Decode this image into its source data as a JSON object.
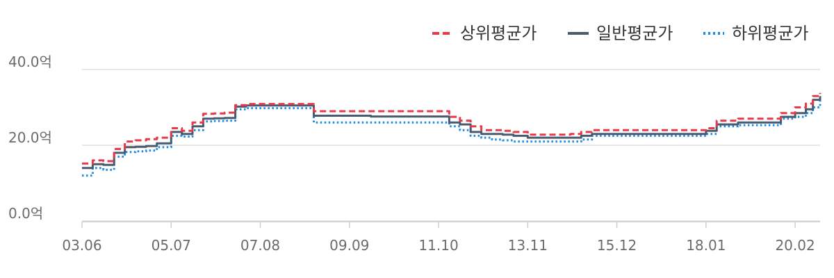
{
  "chart_data": {
    "type": "line",
    "grid": true,
    "legend_position": "top-right",
    "x_ticks": [
      "03.06",
      "05.07",
      "07.08",
      "09.09",
      "11.10",
      "13.11",
      "15.12",
      "18.01",
      "20.02"
    ],
    "x_range": [
      "2003-06",
      "2020-09"
    ],
    "y_ticks": [
      "0.0억",
      "20.0억",
      "40.0억"
    ],
    "ylim": [
      0,
      40
    ],
    "x": [
      "2003-06",
      "2003-09",
      "2003-12",
      "2004-03",
      "2004-06",
      "2004-09",
      "2004-12",
      "2005-03",
      "2005-07",
      "2005-10",
      "2006-01",
      "2006-04",
      "2006-07",
      "2006-10",
      "2007-01",
      "2007-04",
      "2007-08",
      "2007-11",
      "2008-02",
      "2008-05",
      "2008-08",
      "2008-11",
      "2009-02",
      "2009-05",
      "2009-09",
      "2009-12",
      "2010-03",
      "2010-06",
      "2010-09",
      "2010-12",
      "2011-03",
      "2011-06",
      "2011-10",
      "2012-01",
      "2012-04",
      "2012-07",
      "2012-10",
      "2013-01",
      "2013-04",
      "2013-07",
      "2013-11",
      "2014-02",
      "2014-05",
      "2014-08",
      "2014-11",
      "2015-02",
      "2015-05",
      "2015-08",
      "2015-12",
      "2016-03",
      "2016-06",
      "2016-09",
      "2016-12",
      "2017-03",
      "2017-06",
      "2017-09",
      "2018-01",
      "2018-04",
      "2018-07",
      "2018-10",
      "2019-01",
      "2019-04",
      "2019-07",
      "2019-10",
      "2020-02",
      "2020-05",
      "2020-07",
      "2020-09"
    ],
    "series": [
      {
        "name": "상위평균가",
        "color": "#e8394a",
        "dash": "dashed",
        "values": [
          15.2,
          16.0,
          15.8,
          19.0,
          21.0,
          21.3,
          21.6,
          22.0,
          24.5,
          23.8,
          26.0,
          28.3,
          28.4,
          28.6,
          30.6,
          30.9,
          30.9,
          30.9,
          30.9,
          30.9,
          30.9,
          29.0,
          29.0,
          29.0,
          29.0,
          29.0,
          29.0,
          29.0,
          29.0,
          29.0,
          29.0,
          29.0,
          29.0,
          27.5,
          26.5,
          25.0,
          24.0,
          24.0,
          23.8,
          23.5,
          22.8,
          22.8,
          22.8,
          22.8,
          23.0,
          23.5,
          24.0,
          24.0,
          24.0,
          24.0,
          24.0,
          24.0,
          24.0,
          24.0,
          24.0,
          24.0,
          24.5,
          26.5,
          26.5,
          27.0,
          27.0,
          27.0,
          27.0,
          28.5,
          30.0,
          31.0,
          33.0,
          33.8
        ]
      },
      {
        "name": "일반평균가",
        "color": "#4a5a6e",
        "dash": "solid",
        "values": [
          14.0,
          15.0,
          14.8,
          18.0,
          19.5,
          19.6,
          19.8,
          20.5,
          23.5,
          23.0,
          25.0,
          27.0,
          27.1,
          27.2,
          30.2,
          30.5,
          30.5,
          30.5,
          30.5,
          30.5,
          30.5,
          27.8,
          27.8,
          27.8,
          27.8,
          27.8,
          27.6,
          27.6,
          27.6,
          27.6,
          27.6,
          27.6,
          27.6,
          26.0,
          25.5,
          23.5,
          23.0,
          23.0,
          22.8,
          22.5,
          22.0,
          22.0,
          22.0,
          22.0,
          22.0,
          22.5,
          23.0,
          23.0,
          23.0,
          23.0,
          23.0,
          23.0,
          23.0,
          23.0,
          23.0,
          23.0,
          23.8,
          25.5,
          25.5,
          26.0,
          26.0,
          26.0,
          26.0,
          27.5,
          28.5,
          29.5,
          32.0,
          33.0
        ]
      },
      {
        "name": "하위평균가",
        "color": "#1a8ae6",
        "dash": "dotted",
        "values": [
          12.0,
          14.0,
          13.5,
          17.0,
          18.2,
          18.4,
          18.6,
          19.5,
          22.5,
          22.3,
          24.0,
          26.3,
          26.4,
          26.5,
          29.5,
          29.8,
          29.8,
          29.8,
          29.8,
          29.8,
          29.8,
          26.0,
          26.0,
          26.0,
          26.0,
          26.0,
          26.0,
          26.0,
          26.0,
          26.0,
          26.0,
          26.0,
          26.0,
          25.0,
          24.0,
          22.5,
          22.0,
          21.5,
          21.3,
          21.0,
          21.0,
          21.0,
          21.0,
          21.0,
          21.0,
          21.5,
          22.5,
          22.5,
          22.5,
          22.5,
          22.5,
          22.5,
          22.5,
          22.5,
          22.5,
          22.5,
          23.0,
          25.0,
          25.0,
          25.3,
          25.3,
          25.3,
          25.3,
          27.0,
          27.5,
          28.5,
          30.0,
          32.0
        ]
      }
    ]
  }
}
